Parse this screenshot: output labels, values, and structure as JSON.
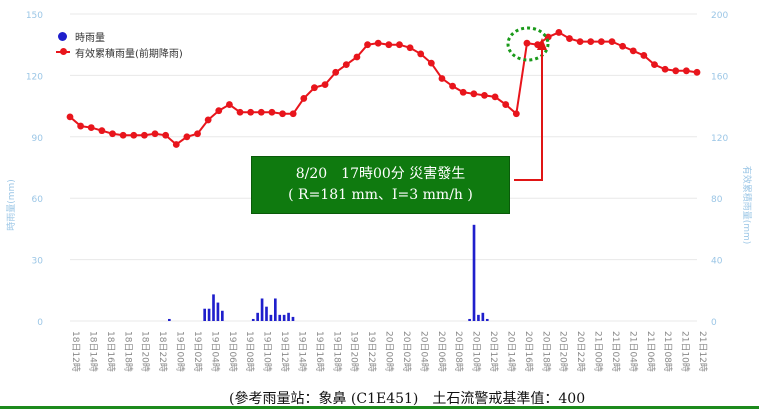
{
  "chart_data": {
    "type": "bar+line",
    "title": "",
    "xlabel": "",
    "ylabel_left": "時雨量(mm)",
    "ylabel_right": "有效累積雨量(mm)",
    "ylim_left": [
      0,
      150
    ],
    "ylim_right": [
      0,
      200
    ],
    "yticks_left": [
      "0",
      "30",
      "60",
      "90",
      "120",
      "150"
    ],
    "yticks_right": [
      "0",
      "40",
      "80",
      "120",
      "160",
      "200"
    ],
    "x_labels": [
      "18日12時",
      "18日14時",
      "18日16時",
      "18日18時",
      "18日20時",
      "18日22時",
      "19日00時",
      "19日02時",
      "19日04時",
      "19日06時",
      "19日08時",
      "19日10時",
      "19日12時",
      "19日14時",
      "19日16時",
      "19日18時",
      "19日20時",
      "19日22時",
      "20日00時",
      "20日02時",
      "20日04時",
      "20日06時",
      "20日08時",
      "20日10時",
      "20日12時",
      "20日14時",
      "20日16時",
      "20日18時",
      "20日20時",
      "20日22時",
      "21日00時",
      "21日02時",
      "21日04時",
      "21日06時",
      "21日08時",
      "21日10時",
      "21日12時"
    ],
    "legend": [
      "時雨量",
      "有效累積雨量(前期降雨)"
    ],
    "series": [
      {
        "name": "時雨量",
        "type": "bar",
        "axis": "left",
        "color": "#1f1fcc",
        "values": [
          0,
          0,
          0,
          0,
          0,
          0,
          0,
          0,
          0,
          0,
          0,
          0,
          0,
          0,
          0,
          0,
          0,
          0,
          0,
          0,
          0,
          0,
          1,
          0,
          0,
          0,
          0,
          0,
          0,
          0,
          6,
          6,
          13,
          9,
          5,
          0,
          0,
          0,
          0,
          0,
          0,
          1,
          4,
          11,
          7,
          3,
          11,
          3,
          3,
          4,
          2,
          0,
          0,
          0,
          0,
          0,
          0,
          0,
          0,
          0,
          0,
          0,
          0,
          0,
          0,
          0,
          0,
          0,
          0,
          0,
          0,
          0,
          0,
          0,
          0,
          0,
          0,
          0,
          0,
          0,
          0,
          0,
          0,
          0,
          0,
          0,
          0,
          0,
          0,
          0,
          1,
          47,
          3,
          4,
          1,
          0,
          0,
          0,
          0,
          0,
          0,
          0,
          0,
          0,
          0,
          0,
          0,
          0,
          0,
          0,
          0,
          0,
          0,
          0,
          0,
          0,
          0,
          0,
          0,
          0,
          0,
          0,
          0,
          0,
          0,
          0,
          0,
          0,
          0,
          0,
          0,
          0,
          0,
          0,
          0,
          0,
          0,
          0,
          0,
          0,
          0,
          0
        ]
      },
      {
        "name": "有效累積雨量(前期降雨)",
        "type": "line",
        "axis": "right",
        "color": "#e8151c",
        "values": [
          133,
          127,
          126,
          124,
          122,
          121,
          121,
          121,
          122,
          121,
          115,
          120,
          122,
          131,
          137,
          141,
          136,
          136,
          136,
          136,
          135,
          135,
          145,
          152,
          154,
          162,
          167,
          172,
          180,
          181,
          180,
          180,
          178,
          174,
          168,
          158,
          153,
          149,
          148,
          147,
          146,
          141,
          135,
          181,
          180,
          185,
          188,
          184,
          182,
          182,
          182,
          182,
          179,
          176,
          173,
          167,
          164,
          163,
          163,
          162
        ]
      }
    ],
    "annotations": {
      "event_line1": "8/20　17時00分 災害發生",
      "event_line2": "( R=181 mm、I=3 mm/h )",
      "footer": "(參考雨量站：象鼻 (C1E451)　土石流警戒基準值：400"
    },
    "grid": "horizontal",
    "legend_position": "top-left"
  }
}
